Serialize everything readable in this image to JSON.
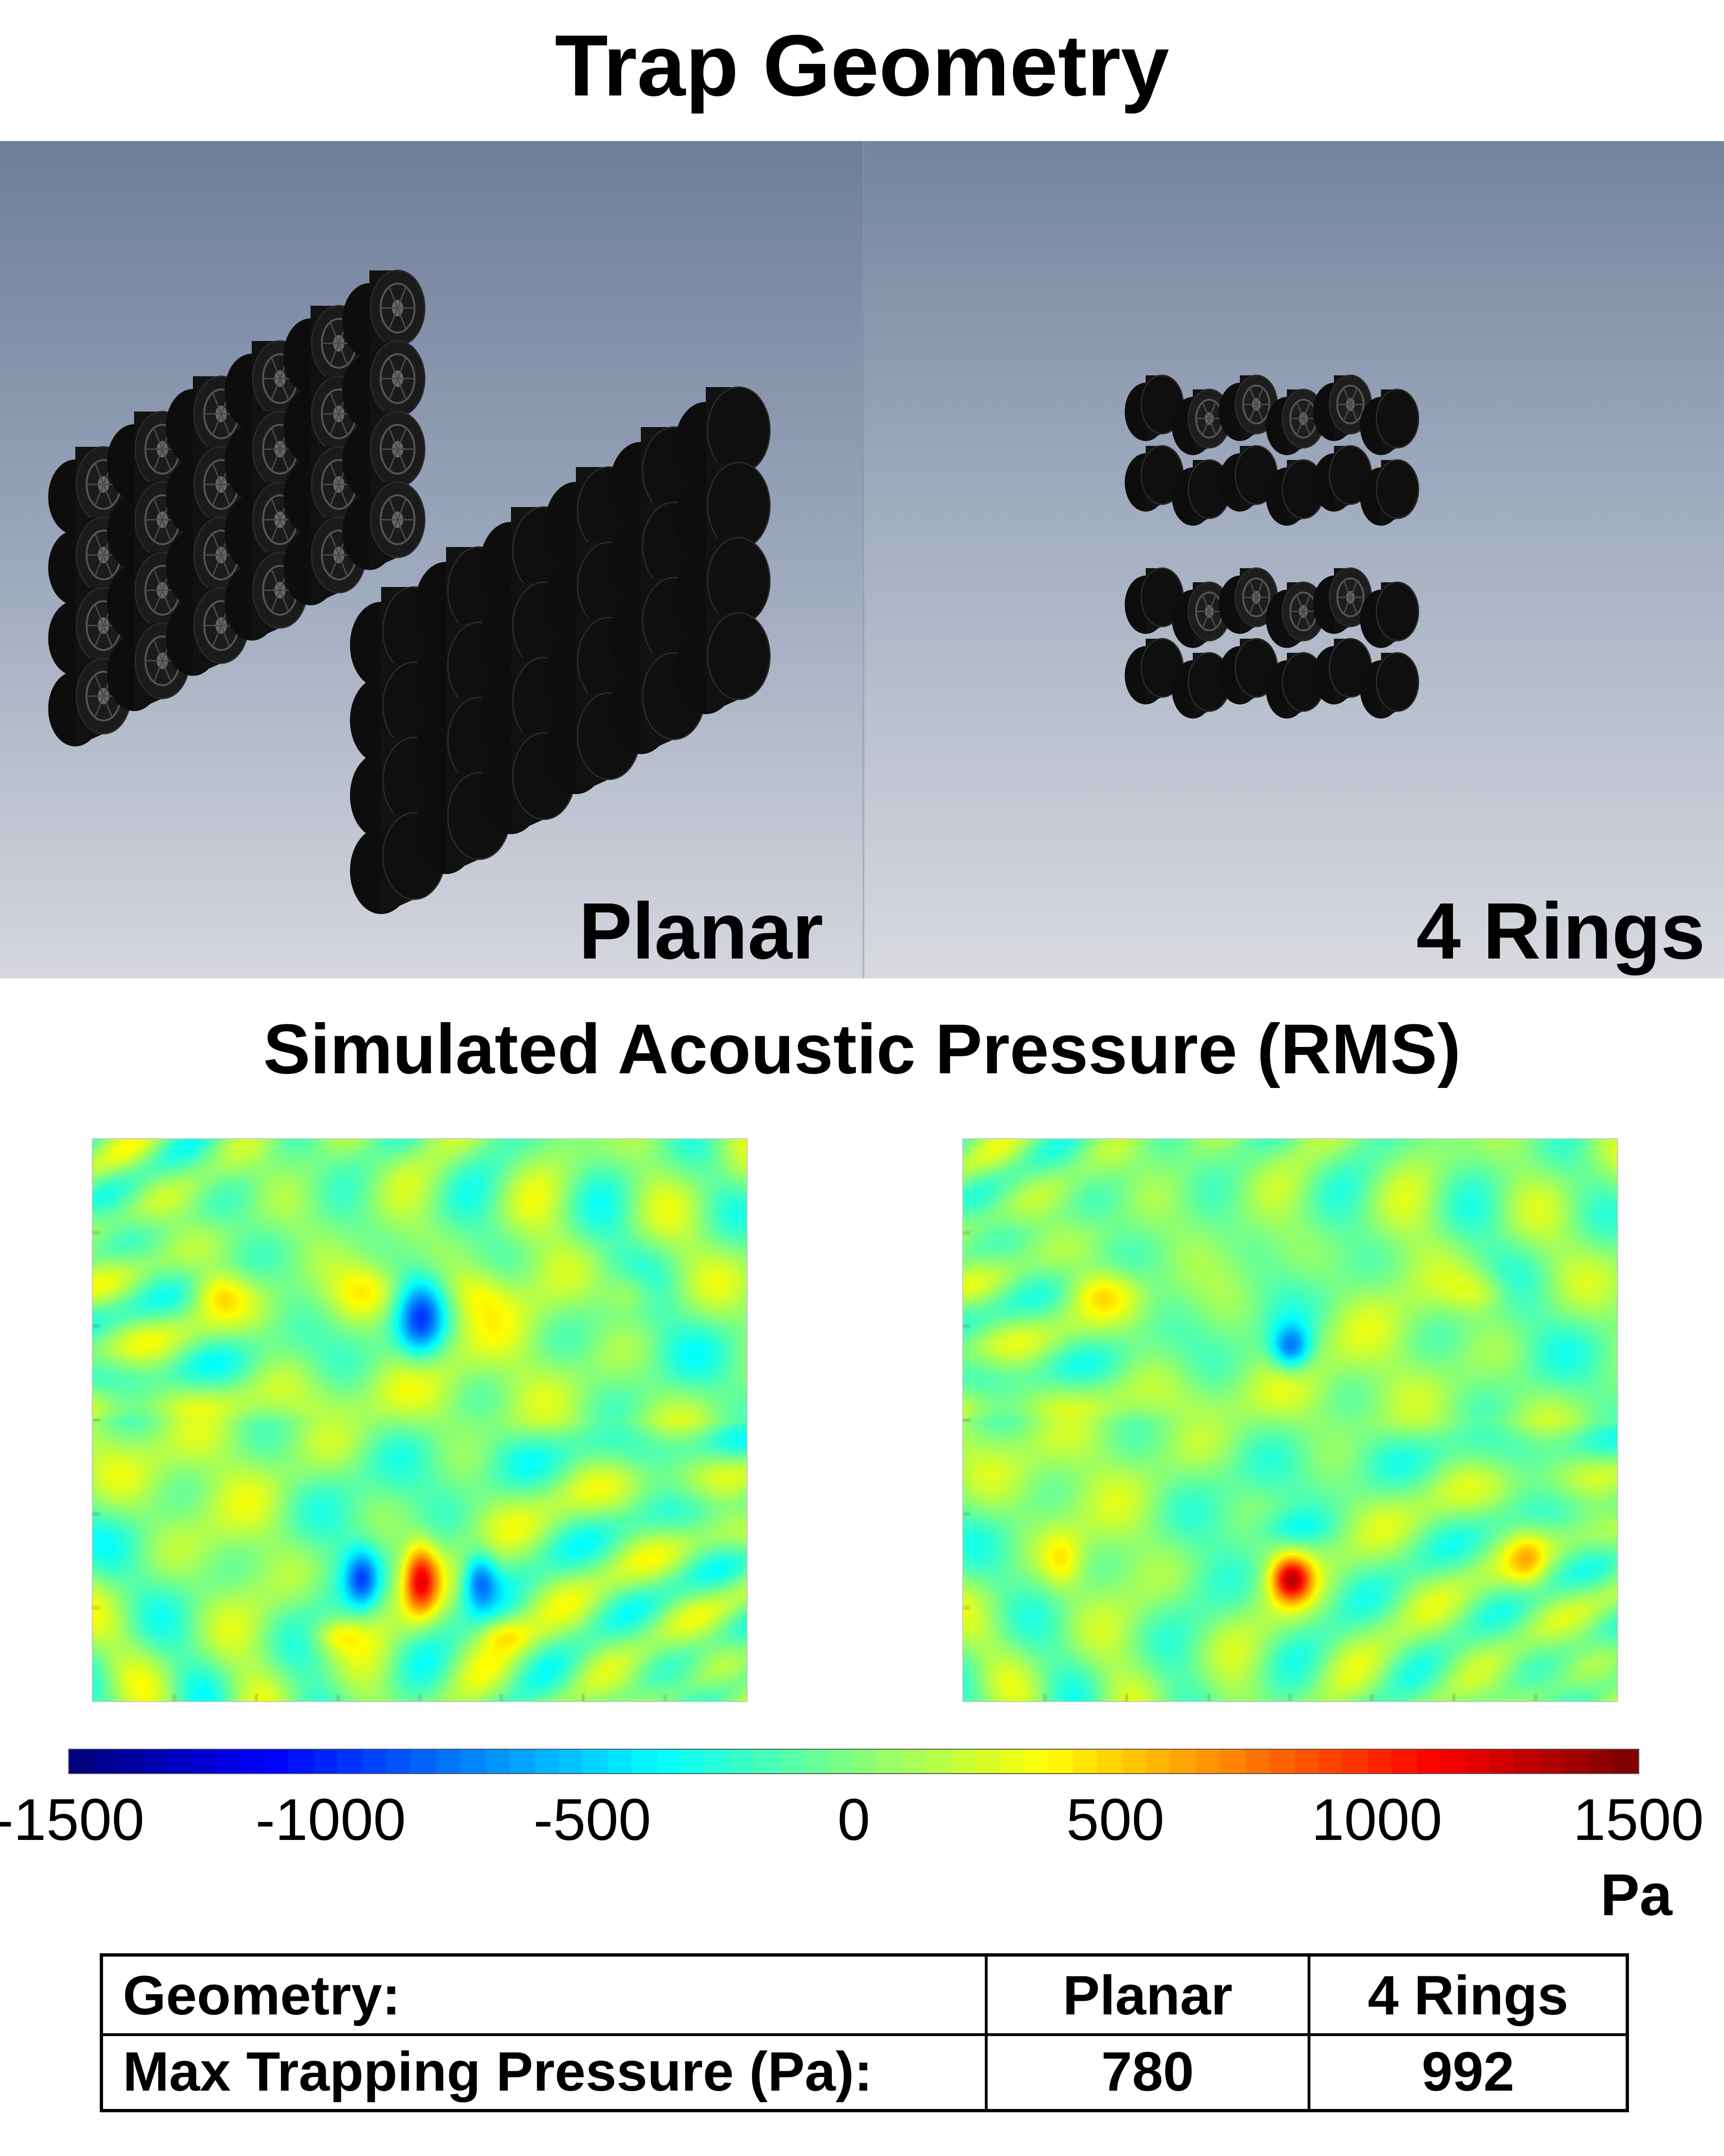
{
  "titles": {
    "trap_geometry": "Trap Geometry",
    "simulated_pressure": "Simulated Acoustic Pressure (RMS)"
  },
  "geometries": {
    "planar_label": "Planar",
    "rings_label": "4 Rings"
  },
  "colorbar": {
    "ticks": [
      "-1500",
      "-1000",
      "-500",
      "0",
      "500",
      "1000",
      "1500"
    ],
    "unit": "Pa",
    "min": -1500,
    "max": 1500,
    "colormap": "jet"
  },
  "table": {
    "header": {
      "label": "Geometry:",
      "col1": "Planar",
      "col2": "4 Rings"
    },
    "row": {
      "label": "Max Trapping Pressure (Pa):",
      "col1": "780",
      "col2": "992"
    }
  },
  "colors": {
    "render_background_top": "#6f7f9a",
    "render_background_bottom": "#d4d5dc",
    "transducer": "#141414",
    "field_neutral": "#52e6b0"
  }
}
